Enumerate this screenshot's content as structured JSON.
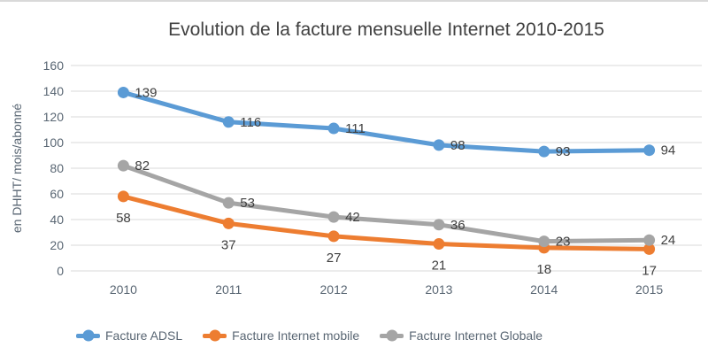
{
  "title": "Evolution de la facture mensuelle Internet 2010-2015",
  "chart_data": {
    "type": "line",
    "title": "Evolution de la facture mensuelle Internet 2010-2015",
    "categories": [
      "2010",
      "2011",
      "2012",
      "2013",
      "2014",
      "2015"
    ],
    "series": [
      {
        "name": "Facture ADSL",
        "color": "#5B9BD5",
        "values": [
          139,
          116,
          111,
          98,
          93,
          94
        ],
        "label_position": "right"
      },
      {
        "name": "Facture Internet mobile",
        "color": "#ED7D31",
        "values": [
          58,
          37,
          27,
          21,
          18,
          17
        ],
        "label_position": "below"
      },
      {
        "name": "Facture Internet Globale",
        "color": "#A5A5A5",
        "values": [
          82,
          53,
          42,
          36,
          23,
          24
        ],
        "label_position": "right"
      }
    ],
    "xlabel": "",
    "ylabel": "en DHHT/ mois/abonné",
    "ylim": [
      0,
      160
    ],
    "ytick_step": 20,
    "grid": true,
    "legend_position": "bottom",
    "colors": {
      "gridline": "#D9D9D9",
      "axis_text": "#596673",
      "data_label_text": "#3F3F3F",
      "title_text": "#404040"
    }
  }
}
